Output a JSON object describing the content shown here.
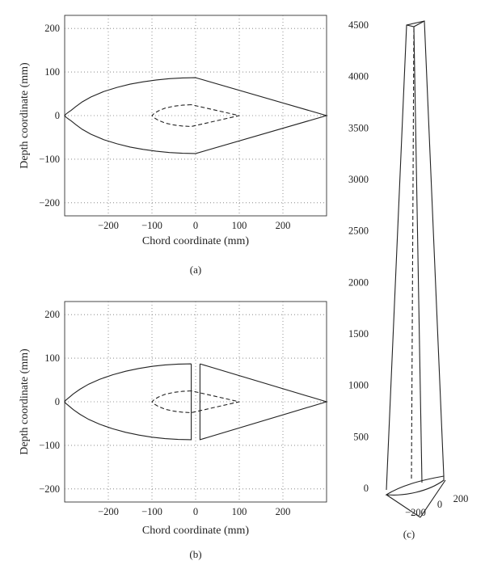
{
  "figure": {
    "panel_labels": [
      "(a)",
      "(b)",
      "(c)"
    ]
  },
  "chart_data": [
    {
      "type": "line",
      "panel": "(a)",
      "xlabel": "Chord coordinate (mm)",
      "ylabel": "Depth coordinate (mm)",
      "xlim": [
        -300,
        300
      ],
      "ylim": [
        -230,
        230
      ],
      "xticks": [
        -200,
        -100,
        0,
        100,
        200
      ],
      "yticks": [
        -200,
        -100,
        0,
        100,
        200
      ],
      "grid": true,
      "series": [
        {
          "style": "solid",
          "x": [
            0,
            -30,
            -60,
            -90,
            -120,
            -150,
            -180,
            -210,
            -240,
            -260,
            -275,
            -285,
            -292,
            -297,
            -300,
            -297,
            -292,
            -285,
            -275,
            -260,
            -240,
            -210,
            -180,
            -150,
            -120,
            -90,
            -60,
            -30,
            0,
            300,
            0
          ],
          "y": [
            87,
            86.5,
            84.7,
            81.8,
            77.6,
            72.1,
            64.8,
            55.4,
            42.7,
            31.3,
            20.2,
            12.3,
            7.2,
            3.6,
            0,
            -3.6,
            -7.2,
            -12.3,
            -20.2,
            -31.3,
            -42.7,
            -55.4,
            -64.8,
            -72.1,
            -77.6,
            -81.8,
            -84.7,
            -86.5,
            -87,
            0,
            87
          ]
        },
        {
          "style": "dashed",
          "x": [
            -10,
            -30,
            -50,
            -70,
            -85,
            -95,
            -100,
            -95,
            -85,
            -70,
            -50,
            -30,
            -10,
            100,
            -10
          ],
          "y": [
            25,
            24,
            21.5,
            17,
            11,
            5,
            0,
            -5,
            -11,
            -17,
            -21.5,
            -24,
            -25,
            0,
            25
          ]
        }
      ]
    },
    {
      "type": "line",
      "panel": "(b)",
      "xlabel": "Chord coordinate (mm)",
      "ylabel": "Depth coordinate (mm)",
      "xlim": [
        -300,
        300
      ],
      "ylim": [
        -230,
        230
      ],
      "xticks": [
        -200,
        -100,
        0,
        100,
        200
      ],
      "yticks": [
        -200,
        -100,
        0,
        100,
        200
      ],
      "grid": true,
      "series": [
        {
          "style": "solid",
          "x": [
            -10,
            -40,
            -70,
            -100,
            -130,
            -160,
            -190,
            -220,
            -245,
            -265,
            -280,
            -289,
            -294,
            -298,
            -300,
            -298,
            -294,
            -289,
            -280,
            -265,
            -245,
            -220,
            -190,
            -160,
            -130,
            -100,
            -70,
            -40,
            -10,
            -10
          ],
          "y": [
            87,
            86.4,
            84.5,
            81.2,
            76.5,
            70.2,
            62,
            51.6,
            40.4,
            28.8,
            18.1,
            10.6,
            6.3,
            3.1,
            0,
            -3.1,
            -6.3,
            -10.6,
            -18.1,
            -28.8,
            -40.4,
            -51.6,
            -62,
            -70.2,
            -76.5,
            -81.2,
            -84.5,
            -86.4,
            -87,
            87
          ]
        },
        {
          "style": "solid",
          "x": [
            10,
            10,
            300,
            10
          ],
          "y": [
            87,
            -87,
            0,
            87
          ]
        },
        {
          "style": "dashed",
          "x": [
            -10,
            -30,
            -50,
            -70,
            -85,
            -95,
            -100,
            -95,
            -85,
            -70,
            -50,
            -30,
            -10,
            100,
            -10
          ],
          "y": [
            25,
            24,
            21.5,
            17,
            11,
            5,
            0,
            -5,
            -11,
            -17,
            -21.5,
            -24,
            -25,
            0,
            25
          ]
        }
      ]
    },
    {
      "type": "line",
      "panel": "(c)",
      "zlim": [
        0,
        4500
      ],
      "zticks": [
        0,
        500,
        1000,
        1500,
        2000,
        2500,
        3000,
        3500,
        4000,
        4500
      ],
      "x_tick_labels": [
        "-200",
        "0",
        "200"
      ],
      "grid": false
    }
  ]
}
